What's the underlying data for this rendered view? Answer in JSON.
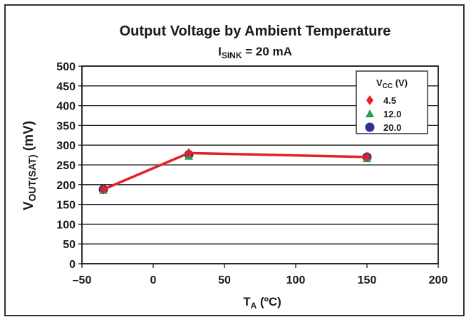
{
  "chart_data": {
    "type": "line",
    "title": "Output Voltage by Ambient Temperature",
    "subtitle": {
      "main": "I",
      "sub": "SINK",
      "rest": " = 20 mA"
    },
    "xlabel": {
      "main": "T",
      "sub": "A",
      "rest": " (ºC)"
    },
    "ylabel": {
      "main": "V",
      "sub": "OUT(SAT)",
      "rest": " (mV)"
    },
    "xlim": [
      -50,
      200
    ],
    "ylim": [
      0,
      500
    ],
    "xticks": [
      -50,
      0,
      50,
      100,
      150,
      200
    ],
    "xtick_labels": [
      "–50",
      "0",
      "50",
      "100",
      "150",
      "200"
    ],
    "yticks": [
      0,
      50,
      100,
      150,
      200,
      250,
      300,
      350,
      400,
      450,
      500
    ],
    "ytick_labels": [
      "0",
      "50",
      "100",
      "150",
      "200",
      "250",
      "300",
      "350",
      "400",
      "450",
      "500"
    ],
    "grid": "horizontal",
    "legend": {
      "title": {
        "main": "V",
        "sub": "CC",
        "rest": " (V)"
      },
      "placement": "top-right"
    },
    "series": [
      {
        "name": "4.5",
        "marker": "diamond",
        "color": "#e32129",
        "x": [
          -35,
          25,
          150
        ],
        "y": [
          188,
          280,
          270
        ]
      },
      {
        "name": "12.0",
        "marker": "triangle",
        "color": "#2ba04a",
        "x": [
          -35,
          25,
          150
        ],
        "y": [
          186,
          272,
          266
        ]
      },
      {
        "name": "20.0",
        "marker": "circle",
        "color": "#2e3192",
        "x": [
          -35,
          25,
          150
        ],
        "y": [
          188,
          276,
          270
        ]
      }
    ],
    "line_color": "#e32129"
  }
}
